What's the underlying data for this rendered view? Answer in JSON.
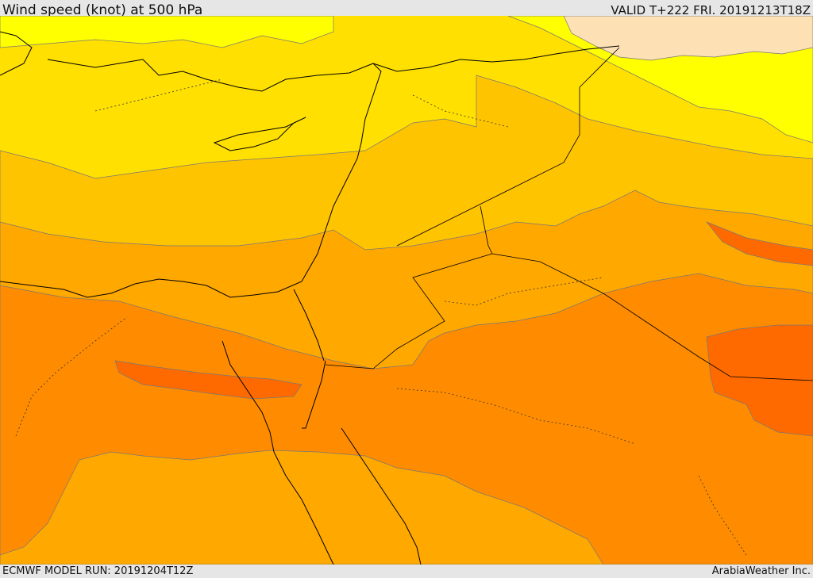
{
  "header": {
    "title": "Wind speed (knot) at 500 hPa",
    "valid_time": "VALID T+222 FRI. 20191213T18Z"
  },
  "footer": {
    "model_run": "ECMWF MODEL RUN: 20191204T12Z",
    "credit": "ArabiaWeather Inc."
  },
  "map": {
    "variable": "wind speed",
    "units": "knot",
    "level_hpa": 500,
    "region": "Eastern Mediterranean, Egypt, Levant, Arabian Peninsula",
    "shading_colors": [
      "#ffff00",
      "#ffe000",
      "#ffc400",
      "#ffa800",
      "#ff8c00",
      "#ff6a00"
    ],
    "light_band_color": "#fde0b4"
  }
}
